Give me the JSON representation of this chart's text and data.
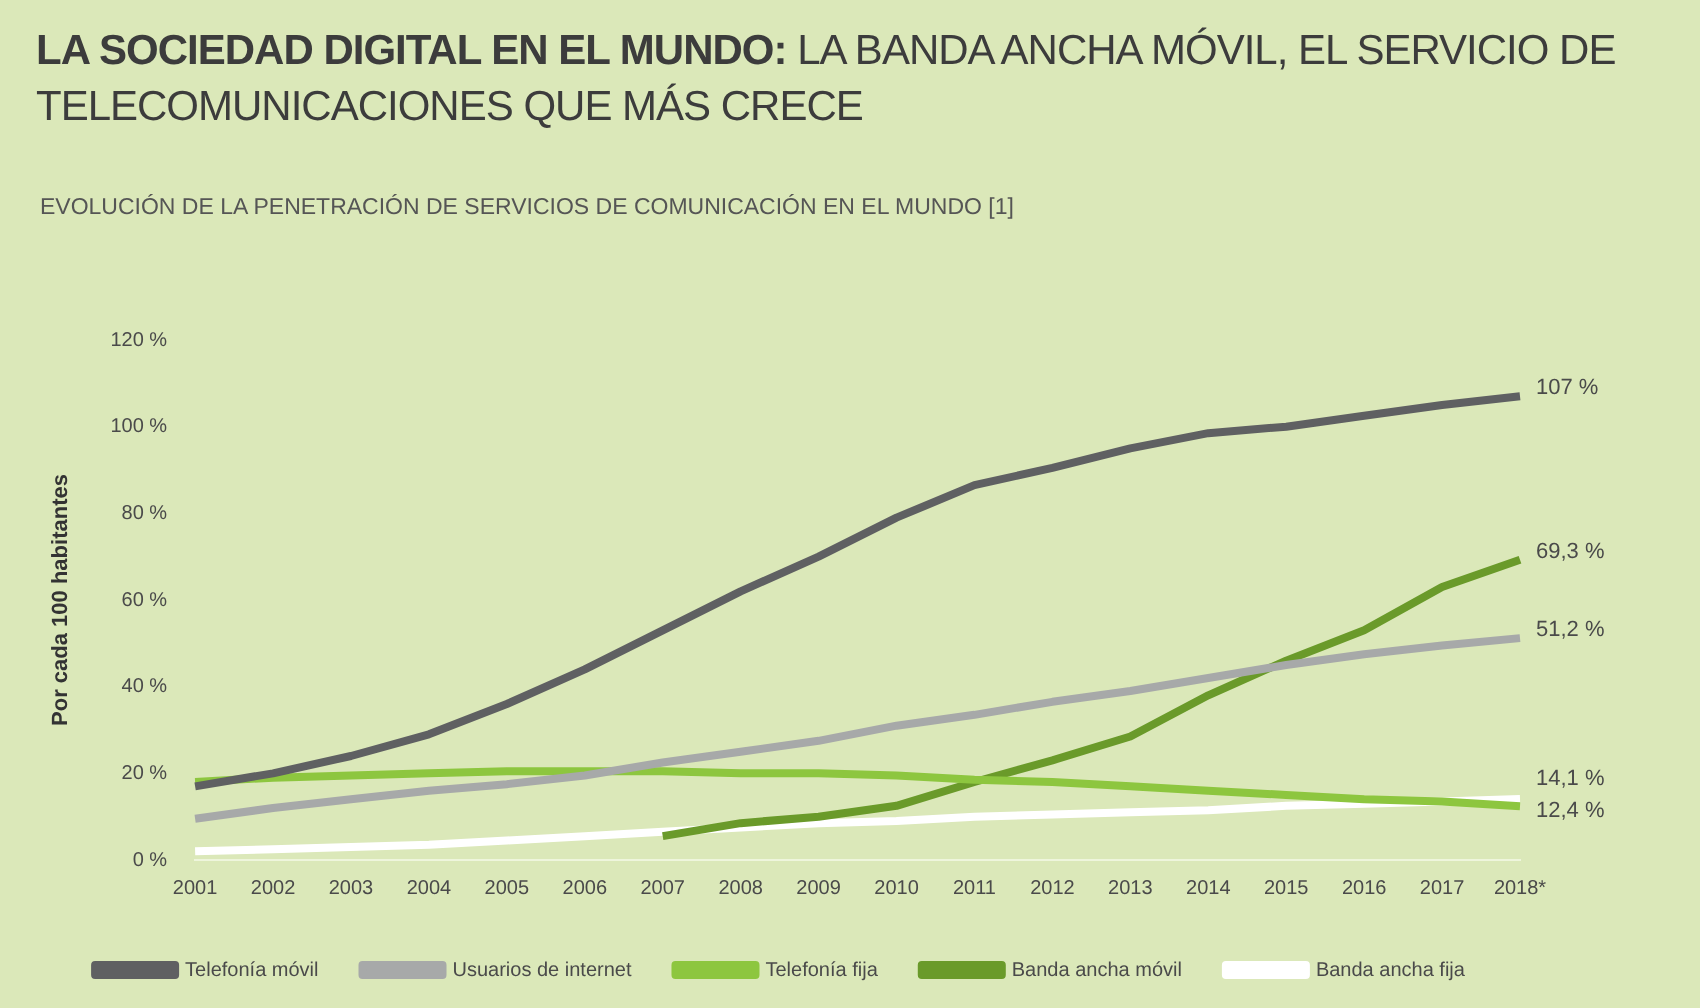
{
  "chart_data": {
    "type": "line",
    "title": "LA SOCIEDAD DIGITAL EN EL MUNDO: LA BANDA ANCHA MÓVIL, EL SERVICIO DE TELECOMUNICACIONES QUE MÁS CRECE",
    "subtitle": "EVOLUCIÓN DE LA PENETRACIÓN DE SERVICIOS DE COMUNICACIÓN EN EL MUNDO [1]",
    "ylabel": "Por cada 100 habitantes",
    "categories": [
      "2001",
      "2002",
      "2003",
      "2004",
      "2005",
      "2006",
      "2007",
      "2008",
      "2009",
      "2010",
      "2011",
      "2012",
      "2013",
      "2014",
      "2015",
      "2016",
      "2017",
      "2018*"
    ],
    "ylim": [
      0,
      120
    ],
    "yticks": [
      {
        "value": 0,
        "label": "0 %"
      },
      {
        "value": 20,
        "label": "20 %"
      },
      {
        "value": 40,
        "label": "40 %"
      },
      {
        "value": 60,
        "label": "60 %"
      },
      {
        "value": 80,
        "label": "80 %"
      },
      {
        "value": 100,
        "label": "100 %"
      },
      {
        "value": 120,
        "label": "120 %"
      }
    ],
    "grid": false,
    "legend": "bottom",
    "marker": "none",
    "line_style": "solid",
    "series": [
      {
        "name": "Telefonía móvil",
        "color": "#5f6062",
        "values": [
          17,
          20,
          24,
          29,
          36,
          44,
          53,
          62,
          70,
          79,
          86.5,
          90.5,
          95,
          98.5,
          100,
          102.5,
          105,
          107
        ],
        "value_labels": [
          null,
          null,
          null,
          null,
          null,
          null,
          null,
          null,
          null,
          null,
          null,
          null,
          null,
          null,
          null,
          null,
          null,
          "107 %"
        ]
      },
      {
        "name": "Usuarios de internet",
        "color": "#a7a9a9",
        "values": [
          9.5,
          12,
          14,
          16,
          17.5,
          19.5,
          22.5,
          25,
          27.5,
          31,
          33.5,
          36.5,
          39,
          42,
          45,
          47.5,
          49.5,
          51.2
        ],
        "value_labels": [
          null,
          null,
          null,
          null,
          null,
          null,
          null,
          null,
          null,
          null,
          null,
          null,
          null,
          null,
          null,
          null,
          null,
          "51,2 %"
        ]
      },
      {
        "name": "Telefonía fija",
        "color": "#8dc63f",
        "values": [
          18,
          19,
          19.5,
          20,
          20.5,
          20.5,
          20.5,
          20,
          20,
          19.5,
          18.5,
          18,
          17,
          16,
          15,
          14,
          13.5,
          12.4
        ],
        "value_labels": [
          null,
          null,
          null,
          null,
          null,
          null,
          null,
          null,
          null,
          null,
          null,
          null,
          null,
          null,
          null,
          null,
          null,
          "12,4 %"
        ]
      },
      {
        "name": "Banda ancha móvil",
        "color": "#6a9a2a",
        "values": [
          null,
          null,
          null,
          null,
          null,
          null,
          5.5,
          8.5,
          10,
          12.5,
          18,
          23,
          28.5,
          38,
          46,
          53,
          63,
          69.3
        ],
        "value_labels": [
          null,
          null,
          null,
          null,
          null,
          null,
          null,
          null,
          null,
          null,
          null,
          null,
          null,
          null,
          null,
          null,
          null,
          "69,3 %"
        ]
      },
      {
        "name": "Banda ancha fija",
        "color": "#ffffff",
        "values": [
          2,
          2.5,
          3,
          3.5,
          4.5,
          5.5,
          6.5,
          7.5,
          8.5,
          9,
          10,
          10.5,
          11,
          11.5,
          12.5,
          13,
          13.5,
          14.1
        ],
        "value_labels": [
          null,
          null,
          null,
          null,
          null,
          null,
          null,
          null,
          null,
          null,
          null,
          null,
          null,
          null,
          null,
          null,
          null,
          "14,1 %"
        ]
      }
    ]
  }
}
